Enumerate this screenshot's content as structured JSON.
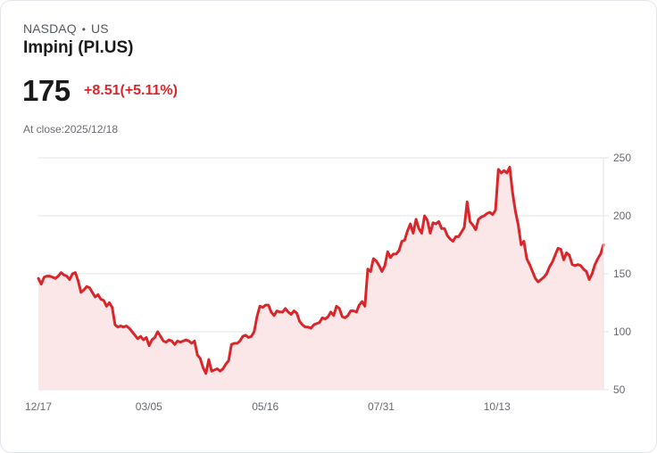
{
  "header": {
    "exchange": "NASDAQ",
    "separator": "•",
    "market": "US",
    "title": "Impinj (PI.US)",
    "price": "175",
    "change": "+8.51(+5.11%)",
    "close_info": "At close:2025/12/18"
  },
  "colors": {
    "line": "#d9262b",
    "area": "#fbe7e8",
    "grid": "#e3e3e3",
    "change_text": "#d9262b"
  },
  "chart_data": {
    "type": "area",
    "title": "Impinj (PI.US)",
    "xlabel": "",
    "ylabel": "",
    "ylim": [
      50,
      250
    ],
    "y_ticks": [
      250,
      200,
      150,
      100,
      50
    ],
    "y_axis_position": "right",
    "grid": true,
    "legend": null,
    "x_tick_labels": [
      "12/17",
      "03/05",
      "05/16",
      "07/31",
      "10/13"
    ],
    "x_tick_positions": [
      0,
      0.194,
      0.4,
      0.605,
      0.81
    ],
    "values": [
      146,
      141,
      147,
      148,
      148,
      147,
      146,
      148,
      151,
      149,
      148,
      145,
      150,
      151,
      144,
      134,
      136,
      139,
      138,
      134,
      130,
      132,
      128,
      127,
      122,
      125,
      121,
      106,
      104,
      105,
      104,
      105,
      103,
      100,
      97,
      94,
      96,
      93,
      95,
      88,
      93,
      95,
      100,
      96,
      92,
      91,
      93,
      92,
      89,
      92,
      91,
      92,
      93,
      92,
      90,
      92,
      80,
      77,
      69,
      64,
      76,
      66,
      67,
      68,
      66,
      68,
      72,
      75,
      89,
      90,
      90,
      92,
      96,
      97,
      95,
      96,
      100,
      113,
      122,
      121,
      123,
      123,
      117,
      114,
      118,
      117,
      117,
      120,
      117,
      115,
      118,
      116,
      109,
      106,
      104,
      104,
      103,
      106,
      107,
      108,
      112,
      111,
      113,
      117,
      114,
      122,
      120,
      113,
      112,
      114,
      118,
      118,
      117,
      123,
      126,
      122,
      154,
      152,
      163,
      161,
      157,
      152,
      157,
      169,
      164,
      167,
      167,
      170,
      178,
      179,
      187,
      193,
      185,
      197,
      189,
      185,
      200,
      196,
      185,
      194,
      193,
      195,
      189,
      189,
      183,
      180,
      178,
      182,
      182,
      186,
      190,
      212,
      195,
      192,
      188,
      197,
      199,
      200,
      202,
      203,
      201,
      205,
      240,
      237,
      239,
      237,
      242,
      220,
      204,
      192,
      175,
      178,
      163,
      158,
      152,
      146,
      143,
      145,
      147,
      150,
      156,
      160,
      166,
      172,
      171,
      162,
      168,
      166,
      158,
      157,
      158,
      157,
      154,
      152,
      145,
      150,
      158,
      163,
      167,
      175
    ]
  }
}
